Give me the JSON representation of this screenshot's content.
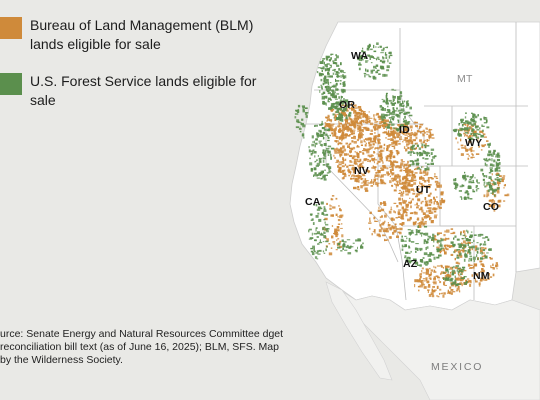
{
  "legend": {
    "items": [
      {
        "label": "Bureau of Land Management (BLM) lands eligible for sale",
        "color": "#cf8a3a"
      },
      {
        "label": "U.S. Forest Service lands eligible for sale",
        "color": "#5b8f4d"
      }
    ]
  },
  "states": {
    "wa": "WA",
    "or": "OR",
    "id": "ID",
    "mt": "MT",
    "wy": "WY",
    "nv": "NV",
    "ut": "UT",
    "ca": "CA",
    "co": "CO",
    "az": "AZ",
    "nm": "NM"
  },
  "country": "MEXICO",
  "source": "urce: Senate Energy and Natural Resources Committee dget reconciliation bill text (as of June 16, 2025); BLM, SFS. Map by the Wilderness Society.",
  "colors": {
    "background": "#e9e9e6",
    "land": "#ffffff",
    "blm": "#cf8a3a",
    "usfs": "#5b8f4d",
    "border": "#b9b9b9"
  }
}
